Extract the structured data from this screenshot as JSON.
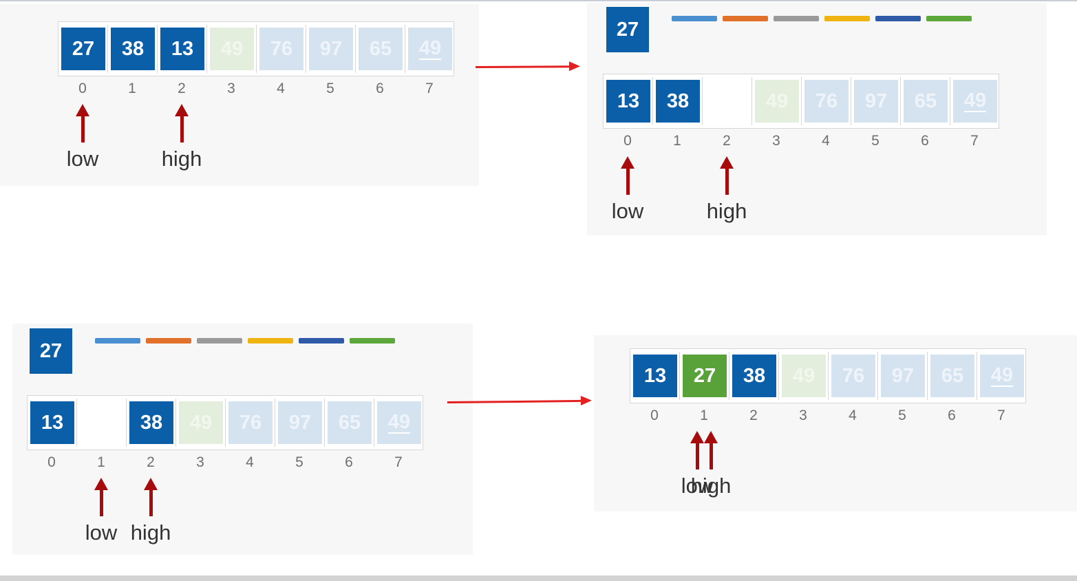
{
  "colors": {
    "blue": "#0b5ea8",
    "green": "#59a23a",
    "pointer": "#a80b0b",
    "transition_arrow": "#e42020",
    "legend": [
      "#4a90d0",
      "#e0702a",
      "#9a9a9a",
      "#f0b410",
      "#2e5aa8",
      "#5ca83a"
    ]
  },
  "panels": [
    {
      "id": "step1",
      "pivot": null,
      "legend": false,
      "cells": [
        {
          "value": "27",
          "style": "blue"
        },
        {
          "value": "38",
          "style": "blue"
        },
        {
          "value": "13",
          "style": "blue"
        },
        {
          "value": "49",
          "style": "ghost-green"
        },
        {
          "value": "76",
          "style": "ghost-blue"
        },
        {
          "value": "97",
          "style": "ghost-blue"
        },
        {
          "value": "65",
          "style": "ghost-blue"
        },
        {
          "value": "49",
          "style": "ghost-blue",
          "underline": true
        }
      ],
      "indices": [
        "0",
        "1",
        "2",
        "3",
        "4",
        "5",
        "6",
        "7"
      ],
      "pointers": [
        {
          "label": "low",
          "index": 0
        },
        {
          "label": "high",
          "index": 2
        }
      ]
    },
    {
      "id": "step2",
      "pivot": "27",
      "legend": true,
      "cells": [
        {
          "value": "13",
          "style": "blue"
        },
        {
          "value": "38",
          "style": "blue"
        },
        {
          "value": "",
          "style": "empty"
        },
        {
          "value": "49",
          "style": "ghost-green"
        },
        {
          "value": "76",
          "style": "ghost-blue"
        },
        {
          "value": "97",
          "style": "ghost-blue"
        },
        {
          "value": "65",
          "style": "ghost-blue"
        },
        {
          "value": "49",
          "style": "ghost-blue",
          "underline": true
        }
      ],
      "indices": [
        "0",
        "1",
        "2",
        "3",
        "4",
        "5",
        "6",
        "7"
      ],
      "pointers": [
        {
          "label": "low",
          "index": 0
        },
        {
          "label": "high",
          "index": 2
        }
      ]
    },
    {
      "id": "step3",
      "pivot": "27",
      "legend": true,
      "cells": [
        {
          "value": "13",
          "style": "blue"
        },
        {
          "value": "",
          "style": "empty"
        },
        {
          "value": "38",
          "style": "blue"
        },
        {
          "value": "49",
          "style": "ghost-green"
        },
        {
          "value": "76",
          "style": "ghost-blue"
        },
        {
          "value": "97",
          "style": "ghost-blue"
        },
        {
          "value": "65",
          "style": "ghost-blue"
        },
        {
          "value": "49",
          "style": "ghost-blue",
          "underline": true
        }
      ],
      "indices": [
        "0",
        "1",
        "2",
        "3",
        "4",
        "5",
        "6",
        "7"
      ],
      "pointers": [
        {
          "label": "low",
          "index": 1
        },
        {
          "label": "high",
          "index": 2
        }
      ]
    },
    {
      "id": "step4",
      "pivot": null,
      "legend": false,
      "cells": [
        {
          "value": "13",
          "style": "blue"
        },
        {
          "value": "27",
          "style": "green"
        },
        {
          "value": "38",
          "style": "blue"
        },
        {
          "value": "49",
          "style": "ghost-green"
        },
        {
          "value": "76",
          "style": "ghost-blue"
        },
        {
          "value": "97",
          "style": "ghost-blue"
        },
        {
          "value": "65",
          "style": "ghost-blue"
        },
        {
          "value": "49",
          "style": "ghost-blue",
          "underline": true
        }
      ],
      "indices": [
        "0",
        "1",
        "2",
        "3",
        "4",
        "5",
        "6",
        "7"
      ],
      "pointers": [
        {
          "label": "low",
          "index": 1
        },
        {
          "label": "high",
          "index": 1
        }
      ]
    }
  ]
}
